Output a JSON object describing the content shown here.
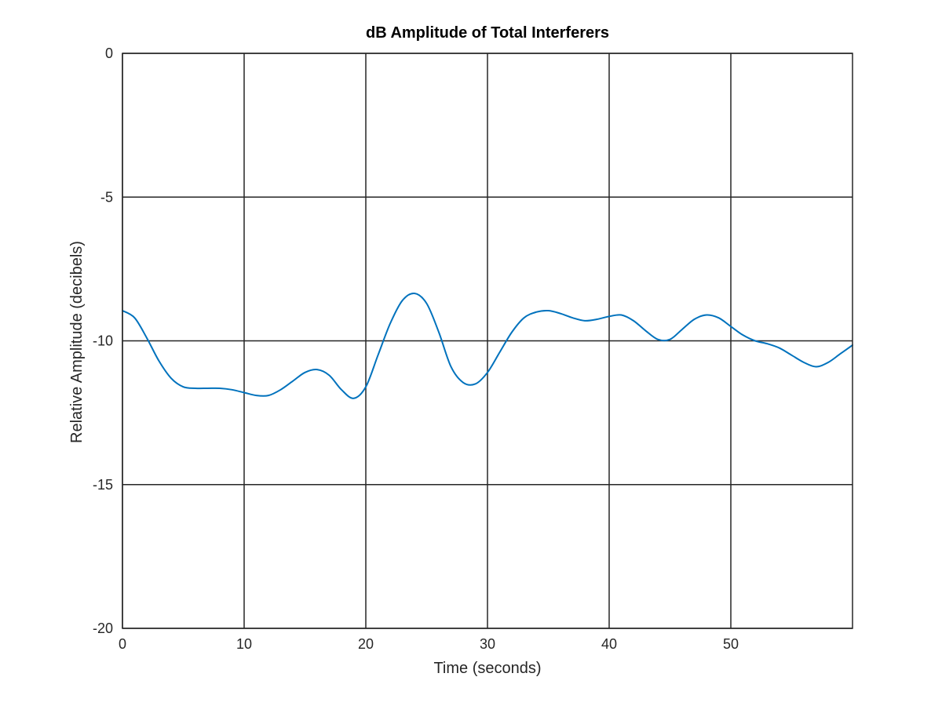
{
  "chart_data": {
    "type": "line",
    "title": "dB Amplitude of Total Interferers",
    "xlabel": "Time (seconds)",
    "ylabel": "Relative Amplitude (decibels)",
    "xlim": [
      0,
      60
    ],
    "ylim": [
      -20,
      0
    ],
    "xticks": [
      0,
      10,
      20,
      30,
      40,
      50
    ],
    "xtick_labels": [
      "0",
      "10",
      "20",
      "30",
      "40",
      "50"
    ],
    "yticks": [
      -20,
      -15,
      -10,
      -5,
      0
    ],
    "ytick_labels": [
      "-20",
      "-15",
      "-10",
      "-5",
      "0"
    ],
    "grid": true,
    "series": [
      {
        "color": "#0072bd",
        "x": [
          0,
          1,
          2,
          3,
          4,
          5,
          6,
          7,
          8,
          9,
          10,
          11,
          12,
          13,
          14,
          15,
          16,
          17,
          18,
          19,
          20,
          21,
          22,
          23,
          24,
          25,
          26,
          27,
          28,
          29,
          30,
          31,
          32,
          33,
          34,
          35,
          36,
          37,
          38,
          39,
          40,
          41,
          42,
          43,
          44,
          45,
          46,
          47,
          48,
          49,
          50,
          51,
          52,
          53,
          54,
          55,
          56,
          57,
          58,
          59,
          60
        ],
        "y": [
          -8.95,
          -9.2,
          -9.9,
          -10.7,
          -11.3,
          -11.6,
          -11.65,
          -11.65,
          -11.65,
          -11.7,
          -11.8,
          -11.9,
          -11.9,
          -11.7,
          -11.4,
          -11.1,
          -11.0,
          -11.2,
          -11.7,
          -12.0,
          -11.6,
          -10.5,
          -9.4,
          -8.6,
          -8.35,
          -8.7,
          -9.7,
          -10.9,
          -11.45,
          -11.5,
          -11.1,
          -10.4,
          -9.7,
          -9.2,
          -9.0,
          -8.95,
          -9.05,
          -9.2,
          -9.3,
          -9.25,
          -9.15,
          -9.1,
          -9.3,
          -9.65,
          -9.95,
          -9.95,
          -9.6,
          -9.25,
          -9.1,
          -9.2,
          -9.5,
          -9.8,
          -10.0,
          -10.1,
          -10.25,
          -10.5,
          -10.75,
          -10.9,
          -10.75,
          -10.45,
          -10.15
        ]
      }
    ]
  }
}
